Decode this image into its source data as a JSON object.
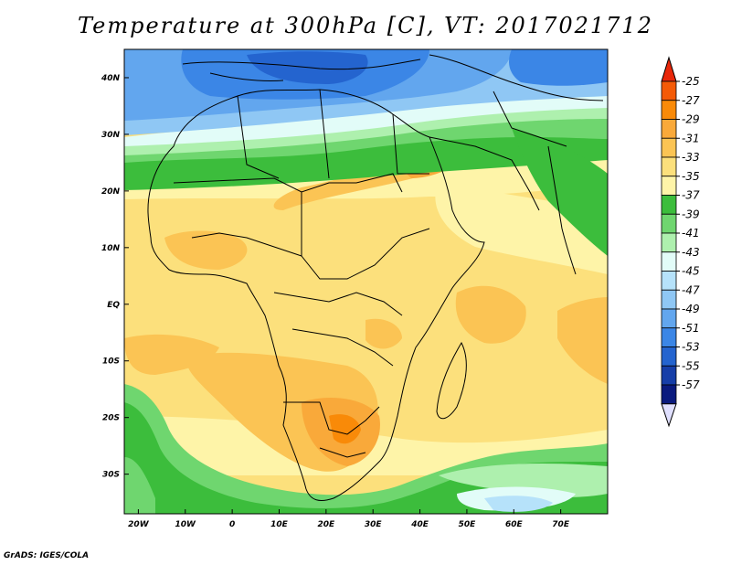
{
  "title": "Temperature at 300hPa [C], VT: 2017021712",
  "credit": "GrADS: IGES/COLA",
  "map": {
    "lon_range": [
      -23,
      80
    ],
    "lat_range": [
      -37,
      45
    ],
    "lon_ticks": [
      {
        "value": -20,
        "label": "20W"
      },
      {
        "value": -10,
        "label": "10W"
      },
      {
        "value": 0,
        "label": "0"
      },
      {
        "value": 10,
        "label": "10E"
      },
      {
        "value": 20,
        "label": "20E"
      },
      {
        "value": 30,
        "label": "30E"
      },
      {
        "value": 40,
        "label": "40E"
      },
      {
        "value": 50,
        "label": "50E"
      },
      {
        "value": 60,
        "label": "60E"
      },
      {
        "value": 70,
        "label": "70E"
      }
    ],
    "lat_ticks": [
      {
        "value": 40,
        "label": "40N"
      },
      {
        "value": 30,
        "label": "30N"
      },
      {
        "value": 20,
        "label": "20N"
      },
      {
        "value": 10,
        "label": "10N"
      },
      {
        "value": 0,
        "label": "EQ"
      },
      {
        "value": -10,
        "label": "10S"
      },
      {
        "value": -20,
        "label": "20S"
      },
      {
        "value": -30,
        "label": "30S"
      }
    ]
  },
  "colorbar": {
    "top_arrow_color": "#e8270a",
    "bottom_arrow_color": "#e0e0ff",
    "segments": [
      {
        "label": "-25",
        "color": "#f45a06"
      },
      {
        "label": "-27",
        "color": "#f98a08"
      },
      {
        "label": "-29",
        "color": "#f9a93a"
      },
      {
        "label": "-31",
        "color": "#fbc454"
      },
      {
        "label": "-33",
        "color": "#fce07c"
      },
      {
        "label": "-35",
        "color": "#fef4a8"
      },
      {
        "label": "-37",
        "color": "#3cbd3c"
      },
      {
        "label": "-39",
        "color": "#6fd66f"
      },
      {
        "label": "-41",
        "color": "#aef0ae"
      },
      {
        "label": "-43",
        "color": "#e2fcf8"
      },
      {
        "label": "-45",
        "color": "#b6e2fa"
      },
      {
        "label": "-47",
        "color": "#8fc7f4"
      },
      {
        "label": "-49",
        "color": "#62a6ee"
      },
      {
        "label": "-51",
        "color": "#3b86e6"
      },
      {
        "label": "-53",
        "color": "#2464cf"
      },
      {
        "label": "-55",
        "color": "#163ea8"
      },
      {
        "label": "-57",
        "color": "#0a1a7e"
      }
    ]
  }
}
